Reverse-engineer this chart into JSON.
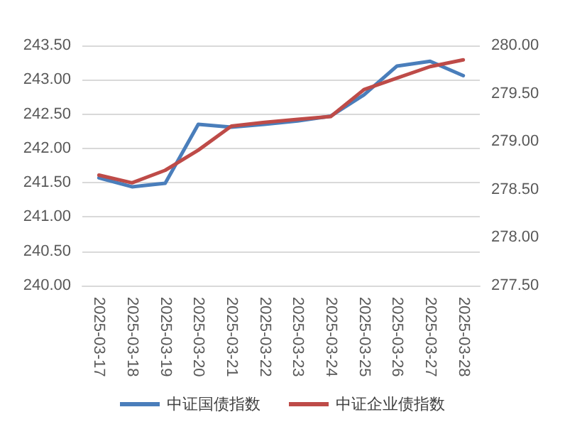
{
  "chart_data": {
    "type": "line",
    "categories": [
      "2025-03-17",
      "2025-03-18",
      "2025-03-19",
      "2025-03-20",
      "2025-03-21",
      "2025-03-22",
      "2025-03-23",
      "2025-03-24",
      "2025-03-25",
      "2025-03-26",
      "2025-03-27",
      "2025-03-28"
    ],
    "series": [
      {
        "name": "中证国债指数",
        "color": "#4a7ebb",
        "values": [
          241.57,
          241.44,
          241.49,
          242.35,
          242.31,
          242.35,
          242.4,
          242.47,
          242.78,
          243.2,
          243.27,
          243.06
        ]
      },
      {
        "name": "中证企业债指数",
        "color": "#be4b48",
        "axis": "y2",
        "values": [
          278.65,
          278.57,
          278.7,
          278.91,
          279.16,
          279.2,
          279.23,
          279.26,
          279.54,
          279.66,
          279.78,
          279.85
        ]
      }
    ],
    "ylim": [
      240,
      243.5
    ],
    "yticks": [
      {
        "value": 240,
        "label": "240.00"
      },
      {
        "value": 240.5,
        "label": "240.50"
      },
      {
        "value": 241,
        "label": "241.00"
      },
      {
        "value": 241.5,
        "label": "241.50"
      },
      {
        "value": 242,
        "label": "242.00"
      },
      {
        "value": 242.5,
        "label": "242.50"
      },
      {
        "value": 243,
        "label": "243.00"
      },
      {
        "value": 243.5,
        "label": "243.50"
      }
    ],
    "y2lim": [
      277.5,
      280
    ],
    "y2ticks": [
      {
        "value": 277.5,
        "label": "277.50"
      },
      {
        "value": 278,
        "label": "278.00"
      },
      {
        "value": 278.5,
        "label": "278.50"
      },
      {
        "value": 279,
        "label": "279.00"
      },
      {
        "value": 279.5,
        "label": "279.50"
      },
      {
        "value": 280,
        "label": "280.00"
      }
    ],
    "grid": "y",
    "legend": "bottom",
    "marker": "none",
    "line_style": "solid"
  }
}
